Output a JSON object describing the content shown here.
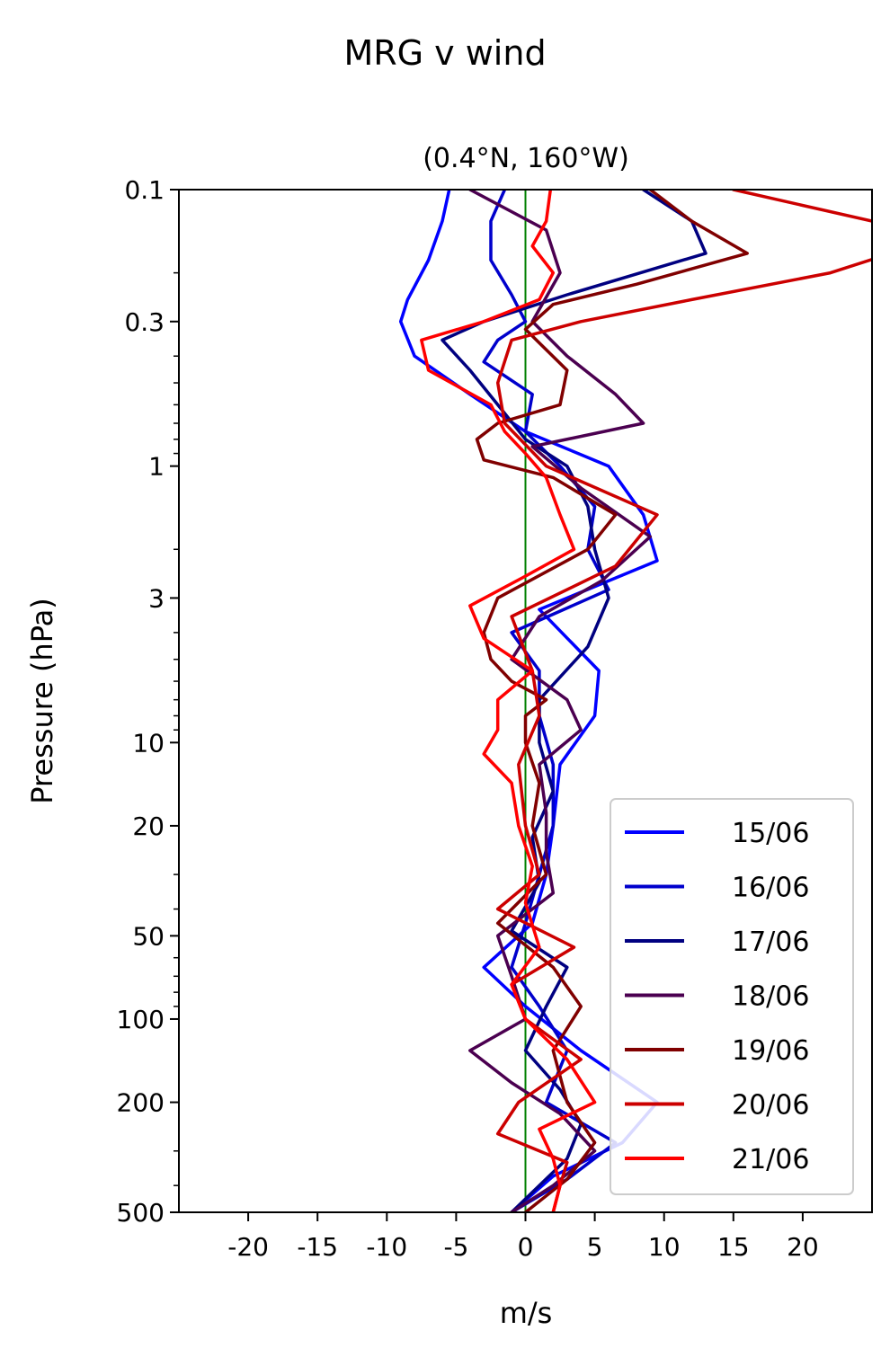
{
  "figure_title": "MRG v wind",
  "chart_data": {
    "type": "line",
    "title": "(0.4°N, 160°W)",
    "xlabel": "m/s",
    "ylabel": "Pressure (hPa)",
    "xlim": [
      -25,
      25
    ],
    "ylim": [
      500,
      0.1
    ],
    "yscale": "log",
    "xticks": [
      -20,
      -15,
      -10,
      -5,
      0,
      5,
      10,
      15,
      20
    ],
    "xtick_labels": [
      "-20",
      "-15",
      "-10",
      "-5",
      "0",
      "5",
      "10",
      "15",
      "20"
    ],
    "yticks": [
      0.1,
      0.3,
      1,
      3,
      10,
      20,
      50,
      100,
      200,
      500
    ],
    "ytick_labels": [
      "0.1",
      "0.3",
      "1",
      "3",
      "10",
      "20",
      "50",
      "100",
      "200",
      "500"
    ],
    "grid": false,
    "legend_position": "lower-right",
    "reference_line": {
      "x": 0,
      "color": "#008000"
    },
    "series": [
      {
        "name": "15/06",
        "color": "#0000ff",
        "pressure": [
          0.1,
          0.13,
          0.18,
          0.25,
          0.3,
          0.4,
          0.55,
          0.75,
          1.0,
          1.5,
          2.2,
          3.3,
          5.5,
          8.0,
          12,
          20,
          30,
          45,
          65,
          90,
          130,
          200,
          280,
          370,
          500
        ],
        "values": [
          -5.5,
          -6,
          -7,
          -8.5,
          -9,
          -8,
          -4,
          0,
          6,
          8.5,
          9.5,
          1,
          5.3,
          5,
          2.5,
          2,
          1.5,
          0.5,
          -3,
          0,
          4,
          9.5,
          7,
          2,
          -1
        ]
      },
      {
        "name": "16/06",
        "color": "#0000cc",
        "pressure": [
          0.1,
          0.13,
          0.18,
          0.24,
          0.3,
          0.35,
          0.42,
          0.55,
          0.75,
          1.0,
          1.4,
          2.0,
          2.8,
          4.0,
          5.5,
          8,
          12,
          20,
          30,
          45,
          65,
          90,
          130,
          200,
          280,
          380,
          500
        ],
        "values": [
          -1.5,
          -2.5,
          -2.5,
          -1,
          0,
          -2,
          -3,
          0.5,
          0,
          2.5,
          5,
          4.5,
          6,
          -1,
          1,
          1,
          2,
          2,
          1,
          0,
          -1,
          1,
          3,
          1.5,
          6.5,
          3,
          -1
        ]
      },
      {
        "name": "17/06",
        "color": "#000080",
        "pressure": [
          0.1,
          0.13,
          0.17,
          0.24,
          0.3,
          0.35,
          0.45,
          0.6,
          0.8,
          1.0,
          1.4,
          2.0,
          3.0,
          4.5,
          7,
          10,
          15,
          22,
          32,
          48,
          65,
          90,
          130,
          180,
          240,
          320,
          500
        ],
        "values": [
          8.5,
          12,
          13,
          3,
          -3,
          -6,
          -4,
          -2,
          0,
          3,
          4.5,
          5,
          6,
          4.5,
          1,
          1,
          2,
          0.5,
          1,
          -1,
          3,
          1.5,
          0,
          2.5,
          4,
          3,
          -1
        ]
      },
      {
        "name": "18/06",
        "color": "#4b0050",
        "pressure": [
          0.1,
          0.14,
          0.2,
          0.3,
          0.4,
          0.55,
          0.7,
          0.85,
          1.2,
          1.8,
          2.6,
          3.5,
          5,
          7,
          9,
          12,
          18,
          25,
          35,
          50,
          70,
          100,
          130,
          170,
          220,
          300,
          400,
          500
        ],
        "values": [
          -4,
          1.5,
          2.5,
          0.5,
          3,
          6.5,
          8.5,
          0.5,
          4,
          9,
          5.5,
          1,
          -1,
          3,
          4,
          1,
          1.5,
          1.5,
          2,
          -2,
          -1,
          0,
          -4,
          -1,
          2.5,
          5,
          2,
          -1
        ]
      },
      {
        "name": "19/06",
        "color": "#800000",
        "pressure": [
          0.1,
          0.13,
          0.17,
          0.22,
          0.26,
          0.32,
          0.45,
          0.6,
          0.7,
          0.8,
          0.95,
          1.1,
          1.5,
          2.0,
          3.0,
          4.0,
          5.0,
          6.0,
          7.0,
          8.0,
          10,
          14,
          20,
          30,
          45,
          65,
          90,
          130,
          200,
          280,
          380,
          500
        ],
        "values": [
          9,
          12,
          16,
          8,
          2,
          0,
          3,
          2.5,
          -2,
          -3.5,
          -3,
          2,
          6.5,
          4.5,
          -2,
          -3,
          -2.5,
          -1,
          1.5,
          0,
          0,
          1,
          0.5,
          1.5,
          -2,
          2,
          4,
          2,
          3,
          5,
          3,
          0
        ]
      },
      {
        "name": "20/06",
        "color": "#cc0000",
        "pressure": [
          0.1,
          0.13,
          0.16,
          0.2,
          0.25,
          0.3,
          0.35,
          0.5,
          0.7,
          1.0,
          1.5,
          2.3,
          3.5,
          5.5,
          8,
          12,
          20,
          30,
          40,
          55,
          75,
          100,
          140,
          200,
          260,
          330,
          400,
          500
        ],
        "values": [
          15,
          25,
          28,
          22,
          12,
          4,
          -1,
          -2,
          -1.5,
          1.5,
          9.5,
          6.5,
          -1,
          0.5,
          1,
          -0.5,
          0,
          1,
          -2,
          3.5,
          -1,
          0,
          4,
          -0.5,
          -2,
          3,
          2.5,
          2
        ]
      },
      {
        "name": "21/06",
        "color": "#ff0000",
        "pressure": [
          0.1,
          0.13,
          0.16,
          0.2,
          0.25,
          0.3,
          0.35,
          0.45,
          0.6,
          0.75,
          0.9,
          1.1,
          1.5,
          2.0,
          2.5,
          3.2,
          4.2,
          5.5,
          7,
          9,
          11,
          14,
          20,
          28,
          38,
          55,
          75,
          100,
          140,
          200,
          250,
          320,
          400,
          500
        ],
        "values": [
          1.8,
          1.5,
          0.5,
          2,
          1,
          -3,
          -7.5,
          -7,
          -2.5,
          -1.5,
          0,
          1.5,
          2.5,
          3.5,
          0,
          -4,
          -3,
          0.5,
          -2,
          -2,
          -3,
          -1,
          -0.5,
          0.5,
          0,
          1,
          -1,
          0,
          3,
          5,
          1,
          2,
          2.5,
          2
        ]
      }
    ]
  }
}
